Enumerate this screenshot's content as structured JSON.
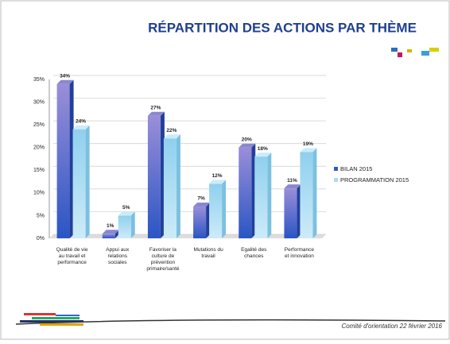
{
  "chart_data": {
    "type": "bar",
    "title": "RÉPARTITION DES ACTIONS PAR THÈME",
    "categories": [
      [
        "Qualité de vie",
        "au travail et",
        "performance"
      ],
      [
        "Appui aux",
        "relations",
        "sociales"
      ],
      [
        "Favoriser la",
        "culture de",
        "prévention",
        "primaire/santé"
      ],
      [
        "Mutations du",
        "travail"
      ],
      [
        "Egalité des",
        "chances"
      ],
      [
        "Performance",
        "et innovation"
      ]
    ],
    "series": [
      {
        "name": "BILAN 2015",
        "color": "#2f5cc4",
        "values": [
          34,
          1,
          27,
          7,
          20,
          11
        ],
        "value_labels": [
          "34%",
          "1%",
          "27%",
          "7%",
          "20%",
          "11%"
        ]
      },
      {
        "name": "PROGRAMMATION 2015",
        "color": "#a9dcf2",
        "values": [
          24,
          5,
          22,
          12,
          18,
          19
        ],
        "value_labels": [
          "24%",
          "5%",
          "22%",
          "12%",
          "18%",
          "19%"
        ]
      }
    ],
    "ylim": [
      0,
      35
    ],
    "yticks": [
      {
        "value": 0,
        "label": "0%"
      },
      {
        "value": 5,
        "label": "5%"
      },
      {
        "value": 10,
        "label": "10%"
      },
      {
        "value": 15,
        "label": "15%"
      },
      {
        "value": 20,
        "label": "20%"
      },
      {
        "value": 25,
        "label": "25%"
      },
      {
        "value": 30,
        "label": "30%"
      },
      {
        "value": 35,
        "label": "35%"
      }
    ],
    "grid": true,
    "legend": "right"
  },
  "footer": "Comité d'orientation 22 février 2016"
}
